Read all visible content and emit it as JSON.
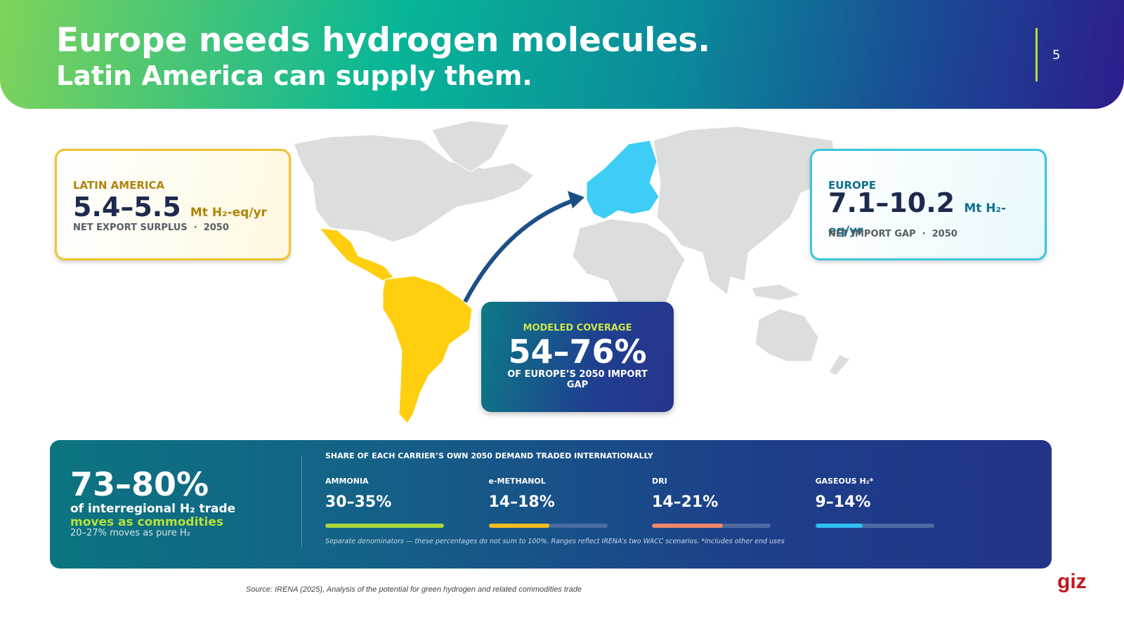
{
  "header": {
    "title": "Europe needs hydrogen molecules.",
    "subtitle": "Latin America can supply them.",
    "page_number": "5"
  },
  "cards": {
    "latin_america": {
      "label": "LATIN AMERICA",
      "value": "5.4–5.5",
      "unit": "Mt H₂-eq/yr",
      "caption": "NET EXPORT SURPLUS  ·  2050"
    },
    "europe": {
      "label": "EUROPE",
      "value": "7.1–10.2",
      "unit": "Mt H₂-eq/yr",
      "caption": "NET IMPORT GAP  ·  2050"
    },
    "coverage": {
      "label": "MODELED COVERAGE",
      "value": "54–76%",
      "caption": "OF EUROPE’S 2050 IMPORT GAP"
    }
  },
  "trade_panel": {
    "headline": "73–80%",
    "line1": "of interregional H₂ trade",
    "line2": "moves as commodities",
    "line3": "20–27% moves as pure H₂",
    "section_title": "SHARE OF EACH CARRIER’S OWN 2050 DEMAND TRADED INTERNATIONALLY",
    "carriers": [
      {
        "name": "AMMONIA",
        "share": "30–35%",
        "color": "#a8d83c"
      },
      {
        "name": "e-METHANOL",
        "share": "14–18%",
        "color": "#f2bd1d"
      },
      {
        "name": "DRI",
        "share": "14–21%",
        "color": "#f0876a"
      },
      {
        "name": "GASEOUS H₂*",
        "share": "9–14%",
        "color": "#2ec0ee"
      }
    ],
    "note": "Separate denominators — these percentages do not sum to 100%. Ranges reflect IRENA’s two WACC scenarios. *Includes other end uses"
  },
  "source": "Source: IRENA (2025), Analysis of the potential for green hydrogen and related commodities trade",
  "logo": "giz"
}
